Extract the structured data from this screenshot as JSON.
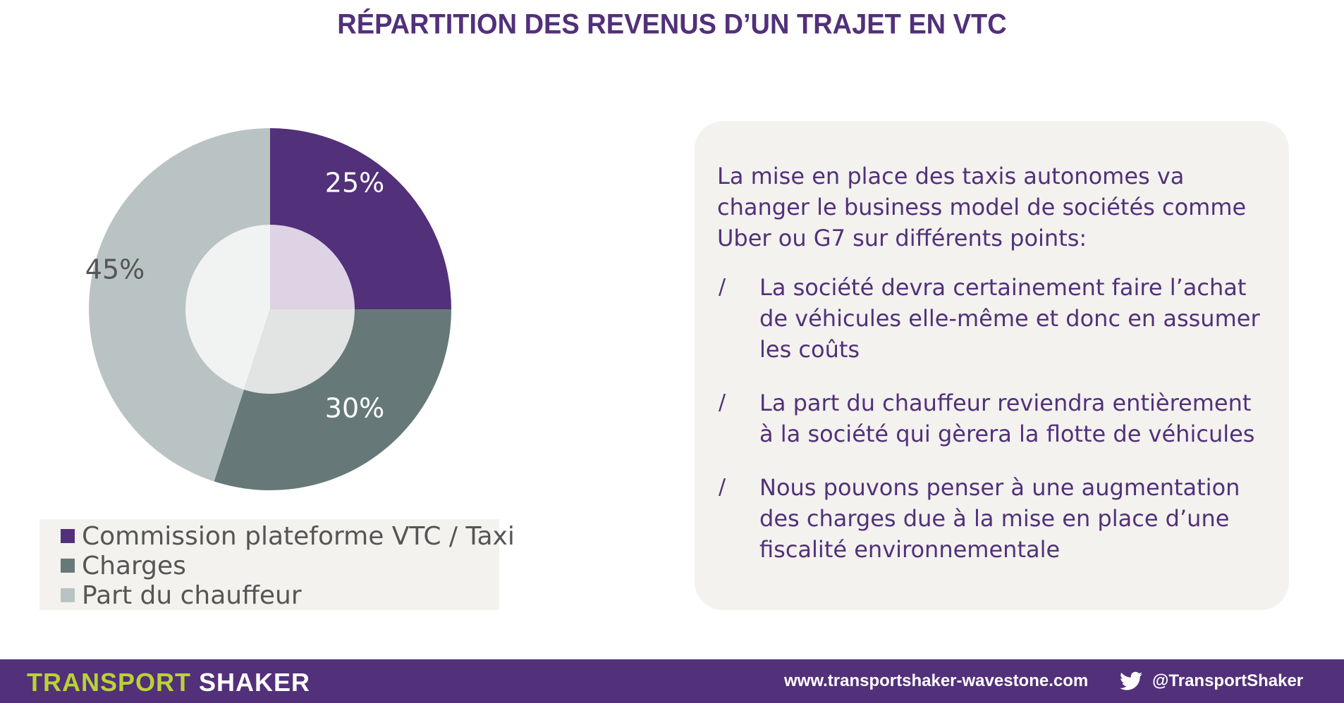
{
  "title": "RÉPARTITION DES REVENUS D’UN TRAJET EN VTC",
  "chart_data": {
    "type": "pie",
    "title": "",
    "slices": [
      {
        "name": "Commission plateforme VTC / Taxi",
        "value": 25,
        "label": "25%",
        "color": "#52307a",
        "inner_color": "#ddd3e4",
        "label_color": "#ffffff"
      },
      {
        "name": "Charges",
        "value": 30,
        "label": "30%",
        "color": "#667978",
        "inner_color": "#e2e3e3",
        "label_color": "#ffffff"
      },
      {
        "name": "Part du chauffeur",
        "value": 45,
        "label": "45%",
        "color": "#bac3c3",
        "inner_color": "#f1f2f2",
        "label_color": "#555555"
      }
    ],
    "legend_position": "bottom"
  },
  "panel": {
    "intro": "La mise en place des taxis autonomes va changer le business model de sociétés comme Uber ou G7 sur différents points:",
    "bullet_mark": "/",
    "bullets": [
      "La société devra certainement faire l’achat de véhicules elle-même et donc en assumer les coûts",
      "La part du chauffeur reviendra entièrement à la société qui gèrera la flotte de véhicules",
      "Nous pouvons penser à une augmentation des charges due à la mise en place d’une fiscalité environnementale"
    ]
  },
  "footer": {
    "brand_part1": "TRANSPORT",
    "brand_part2": " SHAKER",
    "website": "www.transportshaker-wavestone.com",
    "twitter_icon": "twitter-bird-icon",
    "twitter_handle": "@TransportShaker",
    "bar_color": "#52307a",
    "brand_accent": "#b9d335"
  }
}
